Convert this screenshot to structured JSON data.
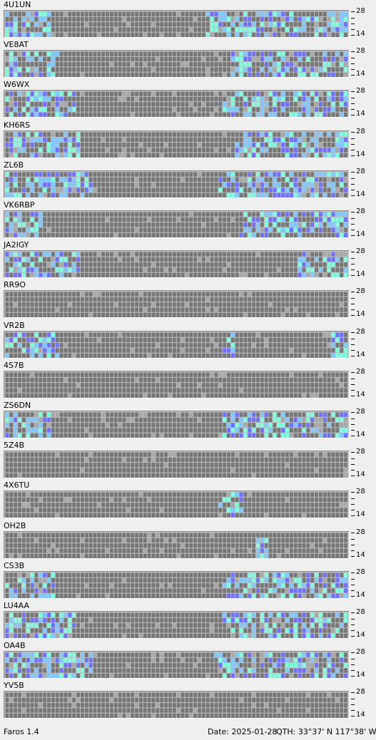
{
  "beacons": [
    {
      "call": "4U1UN",
      "scale_top": "28",
      "scale_bottom": "14"
    },
    {
      "call": "VE8AT",
      "scale_top": "28",
      "scale_bottom": "14"
    },
    {
      "call": "W6WX",
      "scale_top": "28",
      "scale_bottom": "14"
    },
    {
      "call": "KH6RS",
      "scale_top": "28",
      "scale_bottom": "14"
    },
    {
      "call": "ZL6B",
      "scale_top": "28",
      "scale_bottom": "14"
    },
    {
      "call": "VK6RBP",
      "scale_top": "28",
      "scale_bottom": "14"
    },
    {
      "call": "JA2IGY",
      "scale_top": "28",
      "scale_bottom": "14"
    },
    {
      "call": "RR9O",
      "scale_top": "28",
      "scale_bottom": "14"
    },
    {
      "call": "VR2B",
      "scale_top": "28",
      "scale_bottom": "14"
    },
    {
      "call": "4S7B",
      "scale_top": "28",
      "scale_bottom": "14"
    },
    {
      "call": "ZS6DN",
      "scale_top": "28",
      "scale_bottom": "14"
    },
    {
      "call": "5Z4B",
      "scale_top": "28",
      "scale_bottom": "14"
    },
    {
      "call": "4X6TU",
      "scale_top": "28",
      "scale_bottom": "14"
    },
    {
      "call": "OH2B",
      "scale_top": "28",
      "scale_bottom": "14"
    },
    {
      "call": "CS3B",
      "scale_top": "28",
      "scale_bottom": "14"
    },
    {
      "call": "LU4AA",
      "scale_top": "28",
      "scale_bottom": "14"
    },
    {
      "call": "OA4B",
      "scale_top": "28",
      "scale_bottom": "14"
    },
    {
      "call": "YV5B",
      "scale_top": "28",
      "scale_bottom": "14"
    }
  ],
  "status_bar": {
    "version": "Faros 1.4",
    "date": "Date: 2025-01-28",
    "qth": "QTH: 33°37' N  117°38' W"
  },
  "colors": {
    "background": "#efefef",
    "cell_empty": "#767676",
    "cell_grid": "#a8a8a8",
    "signal_weak": "#7070ff",
    "signal_medium": "#80c8ff",
    "signal_strong": "#80ffe0"
  },
  "activity_windows": [
    {
      "call": "4U1UN",
      "ranges": [
        [
          0,
          10
        ],
        [
          48,
          82
        ]
      ]
    },
    {
      "call": "VE8AT",
      "ranges": [
        [
          0,
          12
        ],
        [
          54,
          82
        ]
      ]
    },
    {
      "call": "W6WX",
      "ranges": [
        [
          0,
          16
        ],
        [
          52,
          82
        ]
      ]
    },
    {
      "call": "KH6RS",
      "ranges": [
        [
          0,
          17
        ],
        [
          55,
          82
        ]
      ]
    },
    {
      "call": "ZL6B",
      "ranges": [
        [
          0,
          20
        ],
        [
          51,
          82
        ]
      ]
    },
    {
      "call": "VK6RBP",
      "ranges": [
        [
          0,
          8
        ],
        [
          56,
          82
        ]
      ]
    },
    {
      "call": "JA2IGY",
      "ranges": [
        [
          0,
          17
        ],
        [
          70,
          82
        ]
      ]
    },
    {
      "call": "RR9O",
      "ranges": []
    },
    {
      "call": "VR2B",
      "ranges": [
        [
          0,
          12
        ],
        [
          52,
          54
        ],
        [
          78,
          82
        ]
      ]
    },
    {
      "call": "4S7B",
      "ranges": []
    },
    {
      "call": "ZS6DN",
      "ranges": [
        [
          0,
          10
        ],
        [
          52,
          82
        ]
      ]
    },
    {
      "call": "5Z4B",
      "ranges": []
    },
    {
      "call": "4X6TU",
      "ranges": [
        [
          51,
          56
        ]
      ]
    },
    {
      "call": "OH2B",
      "ranges": [
        [
          60,
          62
        ]
      ]
    },
    {
      "call": "CS3B",
      "ranges": [
        [
          0,
          11
        ],
        [
          52,
          82
        ]
      ]
    },
    {
      "call": "LU4AA",
      "ranges": [
        [
          0,
          16
        ],
        [
          52,
          82
        ]
      ]
    },
    {
      "call": "OA4B",
      "ranges": [
        [
          0,
          20
        ],
        [
          50,
          82
        ]
      ]
    },
    {
      "call": "YV5B",
      "ranges": []
    }
  ]
}
